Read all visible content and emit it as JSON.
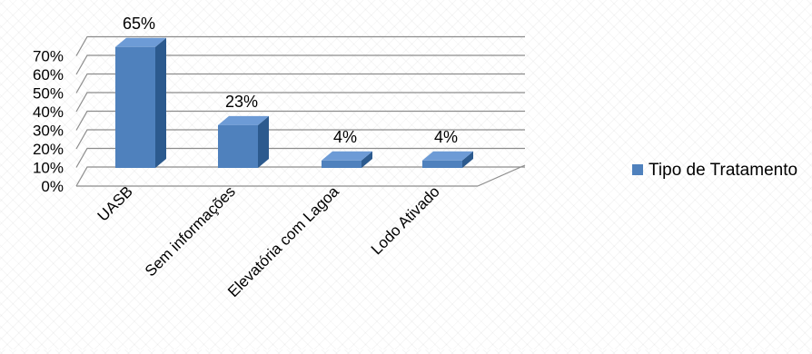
{
  "chart_data": {
    "type": "bar",
    "categories": [
      "UASB",
      "Sem informações",
      "Elevatória com Lagoa",
      "Lodo Ativado"
    ],
    "series": [
      {
        "name": "Tipo de Tratamento",
        "values": [
          65,
          23,
          4,
          4
        ],
        "labels": [
          "65%",
          "23%",
          "4%",
          "4%"
        ]
      }
    ],
    "ylim": [
      0,
      70
    ],
    "yticks": [
      0,
      10,
      20,
      30,
      40,
      50,
      60,
      70
    ],
    "ytick_labels": [
      "0%",
      "10%",
      "20%",
      "30%",
      "40%",
      "50%",
      "60%",
      "70%"
    ],
    "grid": true,
    "is_3d": true,
    "legend_position": "right",
    "colors": {
      "bar_front": "#4f81bd",
      "bar_side": "#2c5a8e",
      "bar_top": "#6d9bd6",
      "grid": "#8c8c8c",
      "text": "#000000"
    }
  }
}
